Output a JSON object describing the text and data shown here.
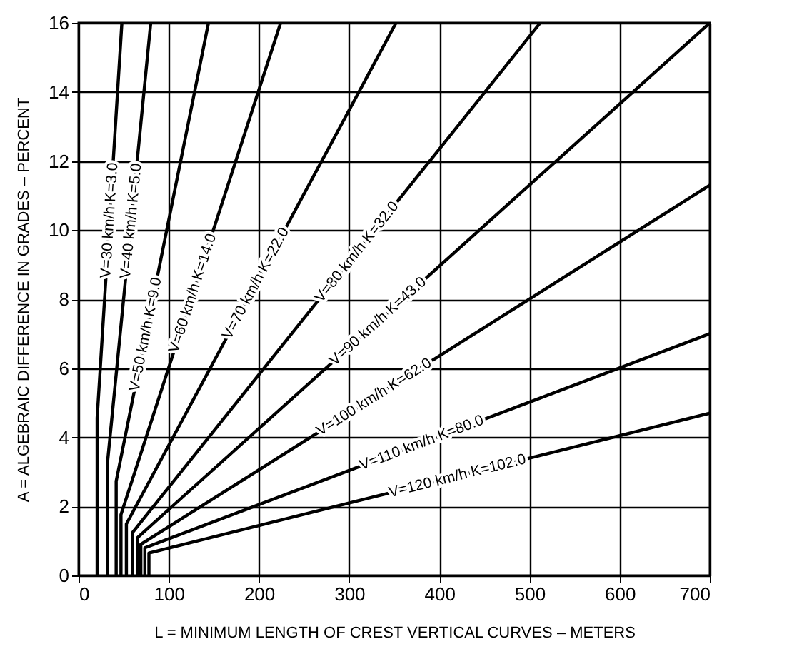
{
  "chart_data": {
    "type": "line",
    "xlabel": "L = MINIMUM LENGTH OF CREST VERTICAL CURVES – METERS",
    "ylabel": "A = ALGEBRAIC DIFFERENCE IN GRADES – PERCENT",
    "xlim": [
      0,
      700
    ],
    "xticks": [
      0,
      100,
      200,
      300,
      400,
      500,
      600,
      700
    ],
    "ylim": [
      0,
      16
    ],
    "yticks": [
      0,
      2,
      4,
      6,
      8,
      10,
      12,
      14,
      16
    ],
    "grid": true,
    "legend": false,
    "series": [
      {
        "name": "V=30 km/h K=3.0",
        "color": "#000000",
        "x": [
          20.6,
          20.6,
          48
        ],
        "values": [
          0,
          4.56,
          16
        ]
      },
      {
        "name": "V=40 km/h K=5.0",
        "color": "#000000",
        "x": [
          32,
          32,
          80
        ],
        "values": [
          0,
          3.25,
          16
        ]
      },
      {
        "name": "V=50 km/h K=9.0",
        "color": "#000000",
        "x": [
          41.7,
          41.7,
          144
        ],
        "values": [
          0,
          2.73,
          16
        ]
      },
      {
        "name": "V=60 km/h K=14.0",
        "color": "#000000",
        "x": [
          47,
          47,
          224
        ],
        "values": [
          0,
          1.76,
          16
        ]
      },
      {
        "name": "V=70 km/h K=22.0",
        "color": "#000000",
        "x": [
          53,
          53,
          352
        ],
        "values": [
          0,
          1.49,
          16
        ]
      },
      {
        "name": "V=80 km/h K=32.0",
        "color": "#000000",
        "x": [
          60,
          60,
          512
        ],
        "values": [
          0,
          1.25,
          16
        ]
      },
      {
        "name": "V=90 km/h K=43.0",
        "color": "#000000",
        "x": [
          65.5,
          65.5,
          700
        ],
        "values": [
          0,
          1.1,
          16
        ]
      },
      {
        "name": "V=100 km/h K=62.0",
        "color": "#000000",
        "x": [
          69,
          69,
          700
        ],
        "values": [
          0,
          0.9,
          11.3
        ]
      },
      {
        "name": "V=110 km/h K=80.0",
        "color": "#000000",
        "x": [
          73.5,
          73.5,
          700
        ],
        "values": [
          0,
          0.8,
          7.0
        ]
      },
      {
        "name": "V=120 km/h K=102.0",
        "color": "#000000",
        "x": [
          78,
          78,
          700
        ],
        "values": [
          0,
          0.65,
          4.7
        ]
      }
    ]
  }
}
